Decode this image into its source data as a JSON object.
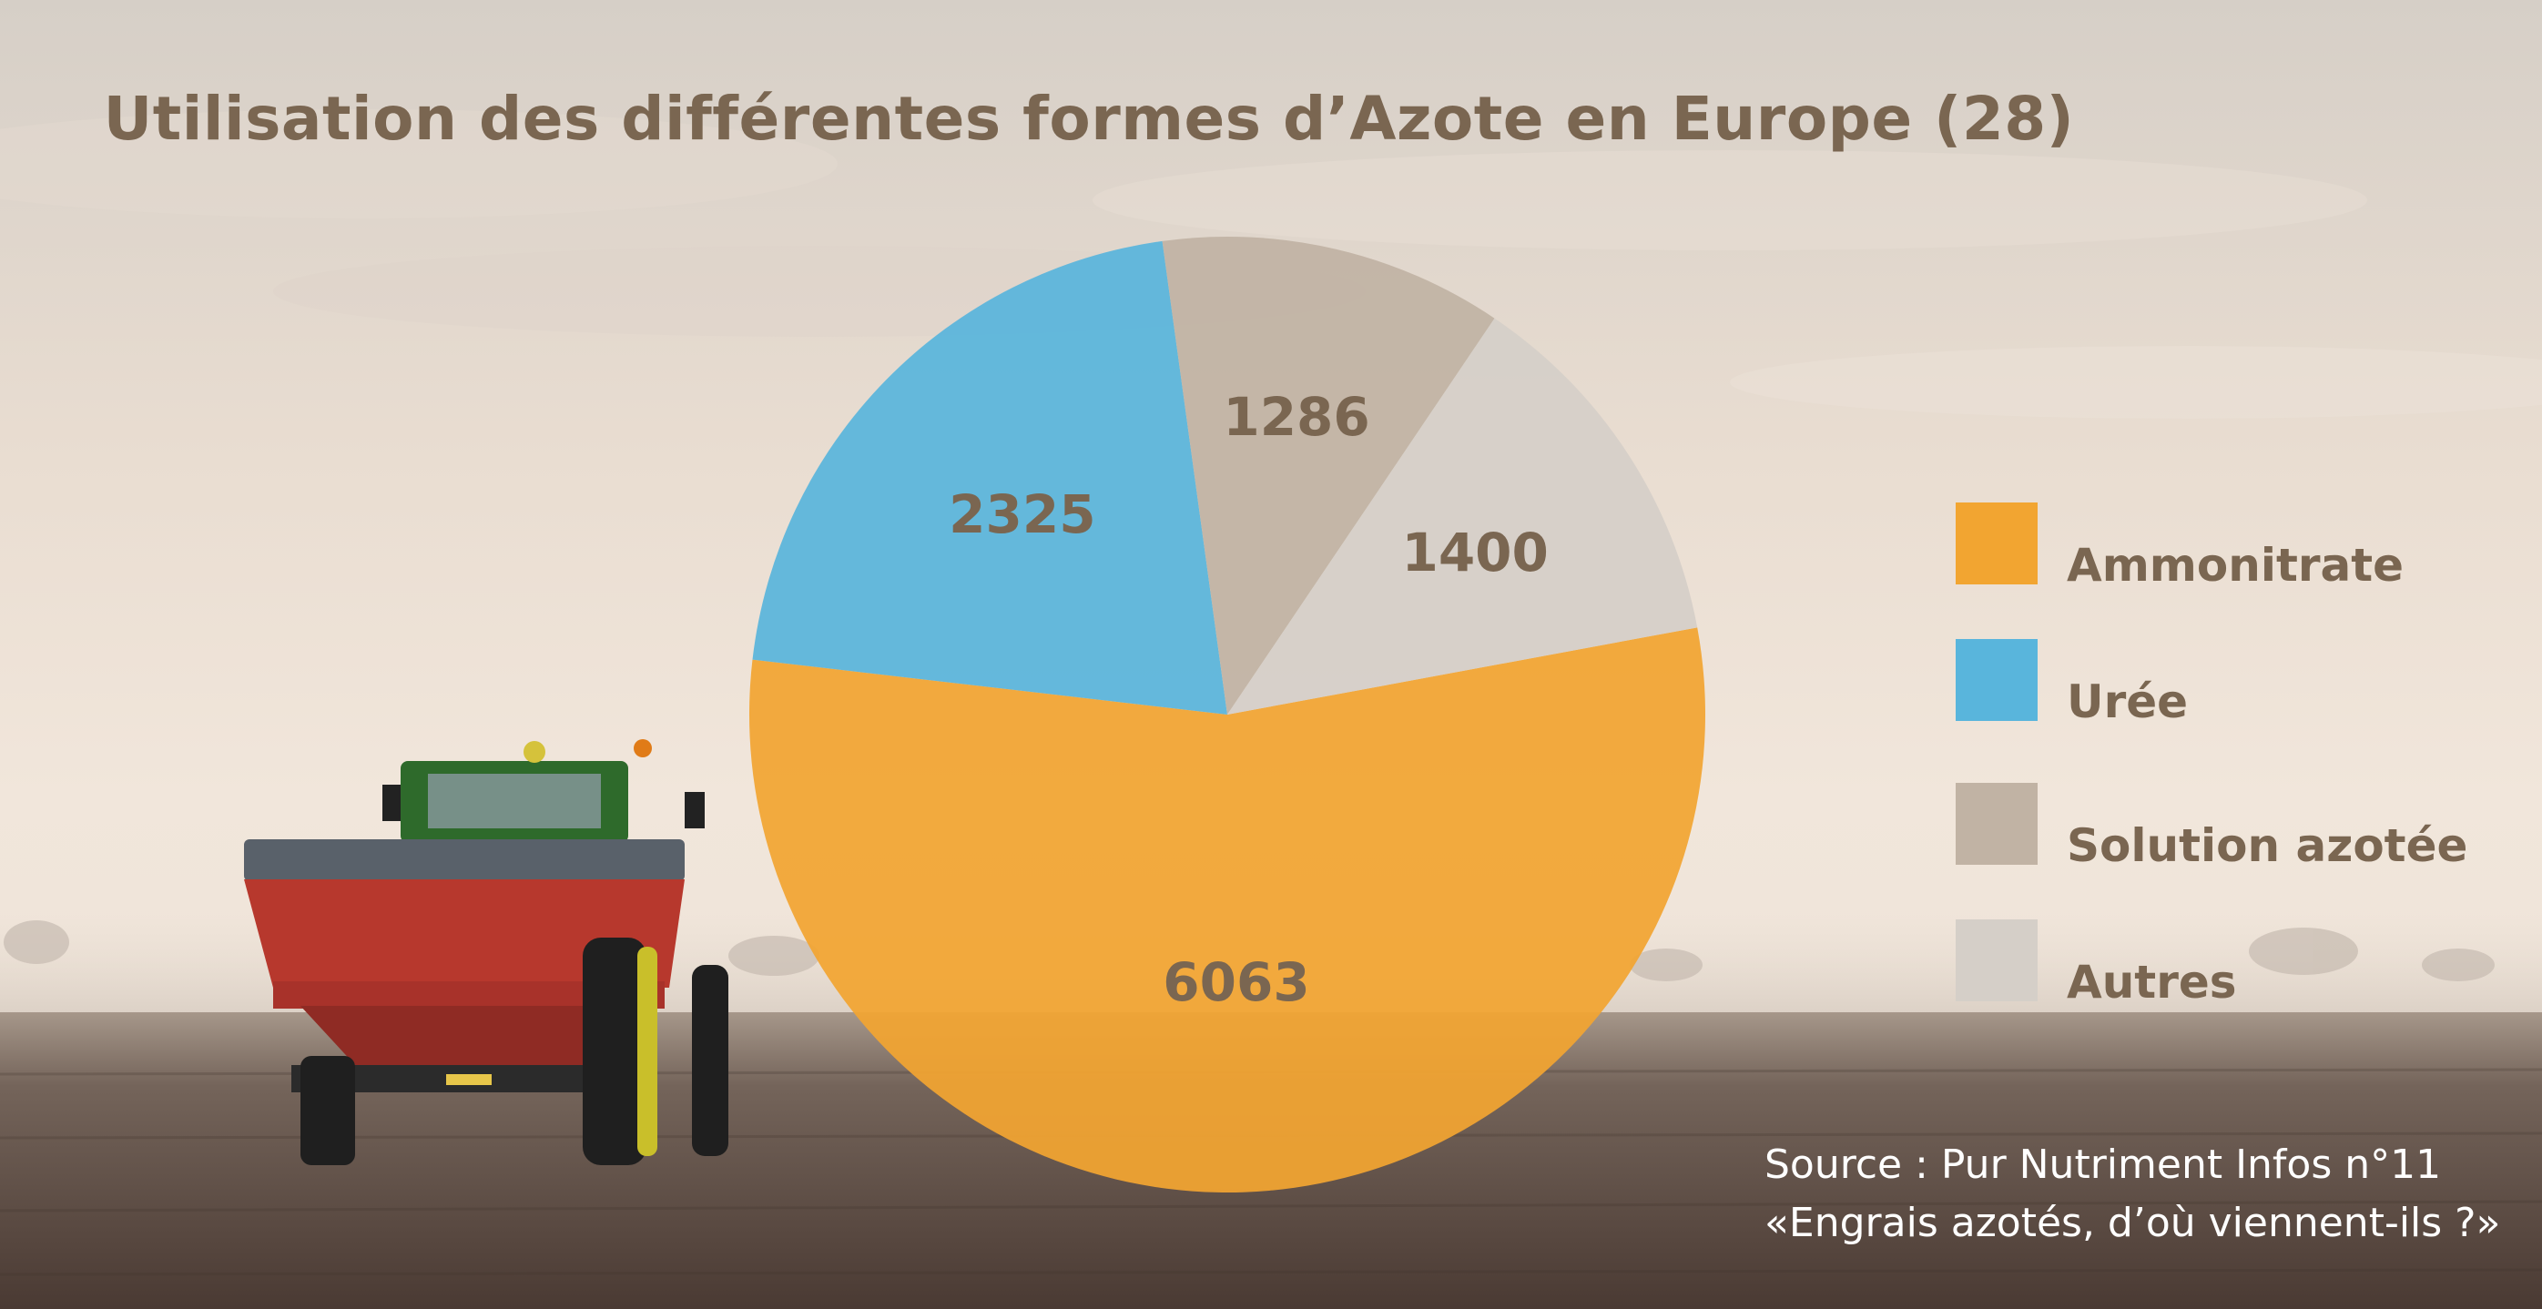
{
  "chart_data": {
    "type": "pie",
    "title": "Utilisation des différentes formes d’Azote en Europe (28)",
    "slices": [
      {
        "label": "Ammonitrate",
        "value": 6063,
        "color": "#f2a531"
      },
      {
        "label": "Urée",
        "value": 2325,
        "color": "#59b5dc"
      },
      {
        "label": "Solution azotée",
        "value": 1286,
        "color": "#c1b3a4"
      },
      {
        "label": "Autres",
        "value": 1400,
        "color": "#d5cfc8"
      }
    ],
    "legend_position": "right"
  },
  "source": {
    "line1": "Source : Pur Nutriment Infos n°11",
    "line2": "«Engrais azotés, d’où viennent-ils ?»"
  },
  "colors": {
    "text": "#7a6651",
    "source_text": "#ffffff"
  }
}
